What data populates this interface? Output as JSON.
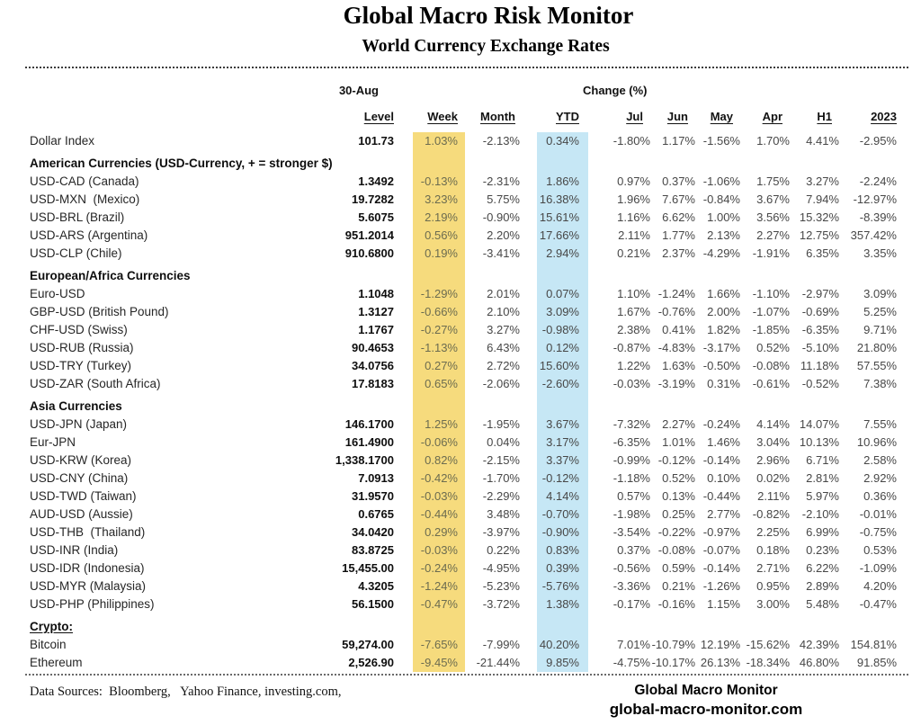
{
  "title": "Global Macro Risk Monitor",
  "subtitle": "World Currency Exchange Rates",
  "colors": {
    "week_highlight": "#F6DB7D",
    "ytd_highlight": "#C6E7F5"
  },
  "table": {
    "date_label": "30-Aug",
    "change_label": "Change (%)",
    "columns": [
      "Level",
      "Week",
      "Month",
      "YTD",
      "Jul",
      "Jun",
      "May",
      "Apr",
      "H1",
      "2023"
    ],
    "rows": [
      {
        "type": "data",
        "label": "Dollar Index",
        "values": [
          "101.73",
          "1.03%",
          "-2.13%",
          "0.34%",
          "-1.80%",
          "1.17%",
          "-1.56%",
          "1.70%",
          "4.41%",
          "-2.95%"
        ]
      },
      {
        "type": "section",
        "label": "American Currencies (USD-Currency, + = stronger $)"
      },
      {
        "type": "data",
        "label": "USD-CAD (Canada)",
        "values": [
          "1.3492",
          "-0.13%",
          "-2.31%",
          "1.86%",
          "0.97%",
          "0.37%",
          "-1.06%",
          "1.75%",
          "3.27%",
          "-2.24%"
        ]
      },
      {
        "type": "data",
        "label": "USD-MXN  (Mexico)",
        "values": [
          "19.7282",
          "3.23%",
          "5.75%",
          "16.38%",
          "1.96%",
          "7.67%",
          "-0.84%",
          "3.67%",
          "7.94%",
          "-12.97%"
        ]
      },
      {
        "type": "data",
        "label": "USD-BRL (Brazil)",
        "values": [
          "5.6075",
          "2.19%",
          "-0.90%",
          "15.61%",
          "1.16%",
          "6.62%",
          "1.00%",
          "3.56%",
          "15.32%",
          "-8.39%"
        ]
      },
      {
        "type": "data",
        "label": "USD-ARS (Argentina)",
        "values": [
          "951.2014",
          "0.56%",
          "2.20%",
          "17.66%",
          "2.11%",
          "1.77%",
          "2.13%",
          "2.27%",
          "12.75%",
          "357.42%"
        ]
      },
      {
        "type": "data",
        "label": "USD-CLP (Chile)",
        "values": [
          "910.6800",
          "0.19%",
          "-3.41%",
          "2.94%",
          "0.21%",
          "2.37%",
          "-4.29%",
          "-1.91%",
          "6.35%",
          "3.35%"
        ]
      },
      {
        "type": "section",
        "label": "European/Africa Currencies"
      },
      {
        "type": "data",
        "label": "Euro-USD",
        "values": [
          "1.1048",
          "-1.29%",
          "2.01%",
          "0.07%",
          "1.10%",
          "-1.24%",
          "1.66%",
          "-1.10%",
          "-2.97%",
          "3.09%"
        ]
      },
      {
        "type": "data",
        "label": "GBP-USD (British Pound)",
        "values": [
          "1.3127",
          "-0.66%",
          "2.10%",
          "3.09%",
          "1.67%",
          "-0.76%",
          "2.00%",
          "-1.07%",
          "-0.69%",
          "5.25%"
        ]
      },
      {
        "type": "data",
        "label": "CHF-USD (Swiss)",
        "values": [
          "1.1767",
          "-0.27%",
          "3.27%",
          "-0.98%",
          "2.38%",
          "0.41%",
          "1.82%",
          "-1.85%",
          "-6.35%",
          "9.71%"
        ]
      },
      {
        "type": "data",
        "label": "USD-RUB (Russia)",
        "values": [
          "90.4653",
          "-1.13%",
          "6.43%",
          "0.12%",
          "-0.87%",
          "-4.83%",
          "-3.17%",
          "0.52%",
          "-5.10%",
          "21.80%"
        ]
      },
      {
        "type": "data",
        "label": "USD-TRY (Turkey)",
        "values": [
          "34.0756",
          "0.27%",
          "2.72%",
          "15.60%",
          "1.22%",
          "1.63%",
          "-0.50%",
          "-0.08%",
          "11.18%",
          "57.55%"
        ]
      },
      {
        "type": "data",
        "label": "USD-ZAR (South Africa)",
        "values": [
          "17.8183",
          "0.65%",
          "-2.06%",
          "-2.60%",
          "-0.03%",
          "-3.19%",
          "0.31%",
          "-0.61%",
          "-0.52%",
          "7.38%"
        ]
      },
      {
        "type": "section",
        "label": "Asia Currencies"
      },
      {
        "type": "data",
        "label": "USD-JPN (Japan)",
        "values": [
          "146.1700",
          "1.25%",
          "-1.95%",
          "3.67%",
          "-7.32%",
          "2.27%",
          "-0.24%",
          "4.14%",
          "14.07%",
          "7.55%"
        ]
      },
      {
        "type": "data",
        "label": "Eur-JPN",
        "values": [
          "161.4900",
          "-0.06%",
          "0.04%",
          "3.17%",
          "-6.35%",
          "1.01%",
          "1.46%",
          "3.04%",
          "10.13%",
          "10.96%"
        ]
      },
      {
        "type": "data",
        "label": "USD-KRW (Korea)",
        "values": [
          "1,338.1700",
          "0.82%",
          "-2.15%",
          "3.37%",
          "-0.99%",
          "-0.12%",
          "-0.14%",
          "2.96%",
          "6.71%",
          "2.58%"
        ]
      },
      {
        "type": "data",
        "label": "USD-CNY (China)",
        "values": [
          "7.0913",
          "-0.42%",
          "-1.70%",
          "-0.12%",
          "-1.18%",
          "0.52%",
          "0.10%",
          "0.02%",
          "2.81%",
          "2.92%"
        ]
      },
      {
        "type": "data",
        "label": "USD-TWD (Taiwan)",
        "values": [
          "31.9570",
          "-0.03%",
          "-2.29%",
          "4.14%",
          "0.57%",
          "0.13%",
          "-0.44%",
          "2.11%",
          "5.97%",
          "0.36%"
        ]
      },
      {
        "type": "data",
        "label": "AUD-USD (Aussie)",
        "values": [
          "0.6765",
          "-0.44%",
          "3.48%",
          "-0.70%",
          "-1.98%",
          "0.25%",
          "2.77%",
          "-0.82%",
          "-2.10%",
          "-0.01%"
        ]
      },
      {
        "type": "data",
        "label": "USD-THB  (Thailand)",
        "values": [
          "34.0420",
          "0.29%",
          "-3.97%",
          "-0.90%",
          "-3.54%",
          "-0.22%",
          "-0.97%",
          "2.25%",
          "6.99%",
          "-0.75%"
        ]
      },
      {
        "type": "data",
        "label": "USD-INR (India)",
        "values": [
          "83.8725",
          "-0.03%",
          "0.22%",
          "0.83%",
          "0.37%",
          "-0.08%",
          "-0.07%",
          "0.18%",
          "0.23%",
          "0.53%"
        ]
      },
      {
        "type": "data",
        "label": "USD-IDR (Indonesia)",
        "values": [
          "15,455.00",
          "-0.24%",
          "-4.95%",
          "0.39%",
          "-0.56%",
          "0.59%",
          "-0.14%",
          "2.71%",
          "6.22%",
          "-1.09%"
        ]
      },
      {
        "type": "data",
        "label": "USD-MYR (Malaysia)",
        "values": [
          "4.3205",
          "-1.24%",
          "-5.23%",
          "-5.76%",
          "-3.36%",
          "0.21%",
          "-1.26%",
          "0.95%",
          "2.89%",
          "4.20%"
        ]
      },
      {
        "type": "data",
        "label": "USD-PHP (Philippines)",
        "values": [
          "56.1500",
          "-0.47%",
          "-3.72%",
          "1.38%",
          "-0.17%",
          "-0.16%",
          "1.15%",
          "3.00%",
          "5.48%",
          "-0.47%"
        ]
      },
      {
        "type": "section",
        "label": "Crypto:",
        "underline": true
      },
      {
        "type": "data",
        "label": "Bitcoin",
        "values": [
          "59,274.00",
          "-7.65%",
          "-7.99%",
          "40.20%",
          "7.01%",
          "-10.79%",
          "12.19%",
          "-15.62%",
          "42.39%",
          "154.81%"
        ]
      },
      {
        "type": "data",
        "label": "Ethereum",
        "values": [
          "2,526.90",
          "-9.45%",
          "-21.44%",
          "9.85%",
          "-4.75%",
          "-10.17%",
          "26.13%",
          "-18.34%",
          "46.80%",
          "91.85%"
        ]
      }
    ]
  },
  "footer": {
    "sources": "Data Sources:  Bloomberg,   Yahoo Finance, investing.com,",
    "brand": "Global Macro Monitor",
    "site": "global-macro-monitor.com"
  }
}
